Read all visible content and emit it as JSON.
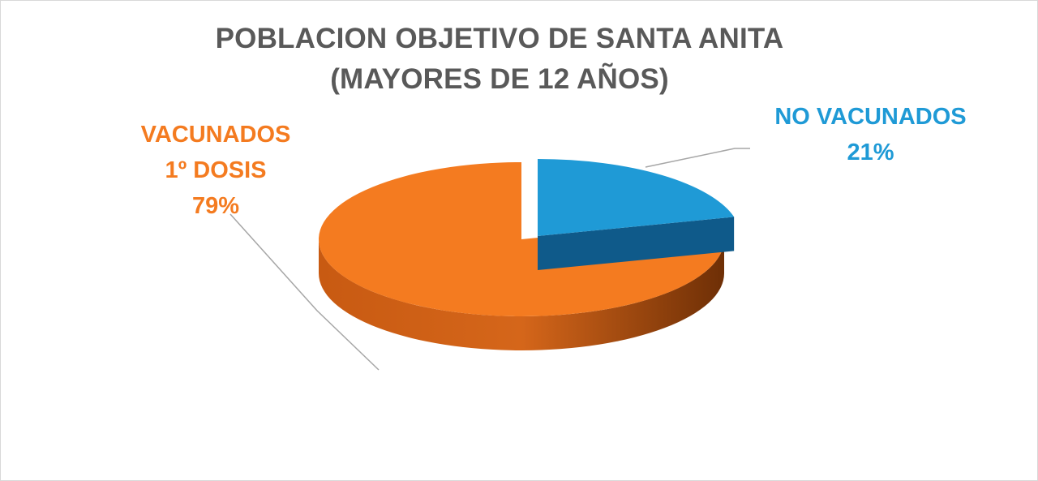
{
  "chart_data": {
    "type": "pie",
    "title": "POBLACION OBJETIVO DE SANTA ANITA",
    "subtitle": "(MAYORES DE 12 AÑOS)",
    "slices": [
      {
        "label_lines": [
          "VACUNADOS",
          "1º DOSIS"
        ],
        "value": 79,
        "value_label": "79%",
        "color": "#f47b20"
      },
      {
        "label_lines": [
          "NO VACUNADOS"
        ],
        "value": 21,
        "value_label": "21%",
        "color": "#1f9ad6"
      }
    ],
    "three_d": true,
    "exploded_slice": "NO VACUNADOS"
  }
}
